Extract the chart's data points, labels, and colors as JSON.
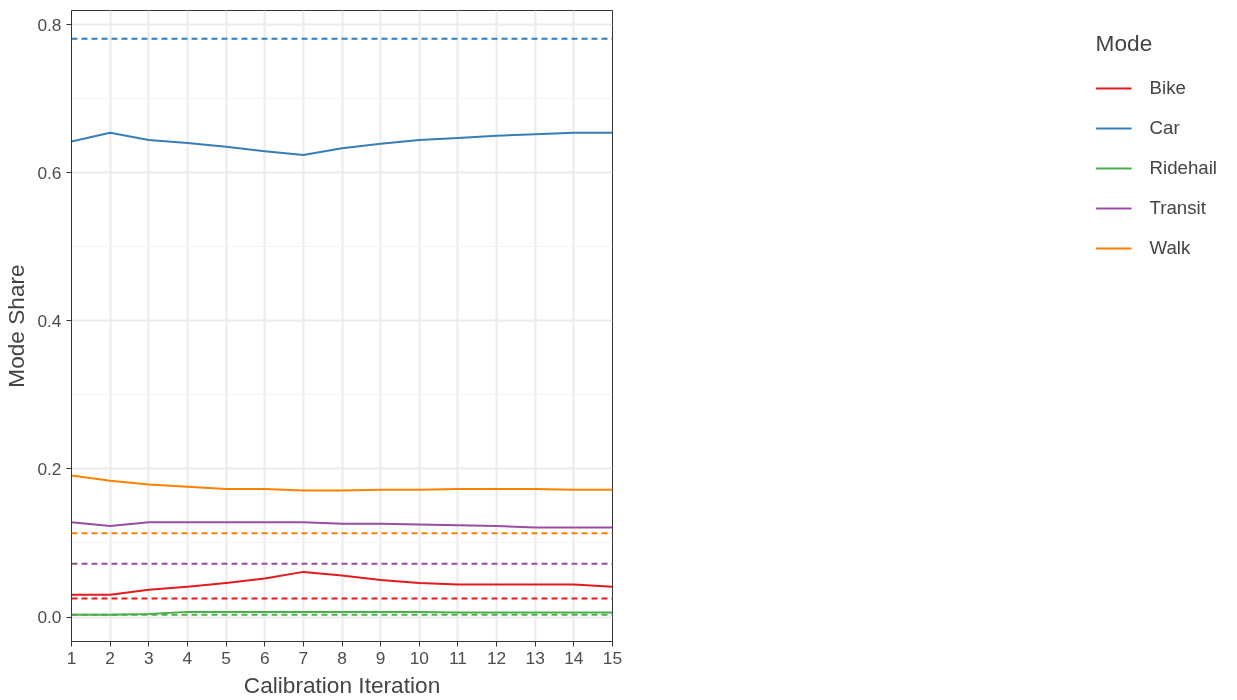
{
  "chart_data": {
    "type": "line",
    "xlabel": "Calibration Iteration",
    "ylabel": "Mode Share",
    "legend_title": "Mode",
    "x": [
      1,
      2,
      3,
      4,
      5,
      6,
      7,
      8,
      9,
      10,
      11,
      12,
      13,
      14,
      15
    ],
    "xlim": [
      1,
      15
    ],
    "xticks": [
      1,
      2,
      3,
      4,
      5,
      6,
      7,
      8,
      9,
      10,
      11,
      12,
      13,
      14,
      15
    ],
    "ylim": [
      -0.033,
      0.819
    ],
    "yticks": [
      {
        "value": 0,
        "label": "0.0"
      },
      {
        "value": 0.2,
        "label": "0.2"
      },
      {
        "value": 0.4,
        "label": "0.4"
      },
      {
        "value": 0.6,
        "label": "0.6"
      },
      {
        "value": 0.8,
        "label": "0.8"
      }
    ],
    "grid": true,
    "legend": "right",
    "line_style": "solid",
    "marker": "none",
    "series": [
      {
        "name": "Bike",
        "color": "#e41a1c",
        "values": [
          0.03,
          0.03,
          0.037,
          0.041,
          0.046,
          0.052,
          0.061,
          0.056,
          0.05,
          0.046,
          0.044,
          0.044,
          0.044,
          0.044,
          0.041
        ]
      },
      {
        "name": "Car",
        "color": "#377eb8",
        "values": [
          0.642,
          0.654,
          0.644,
          0.64,
          0.635,
          0.629,
          0.624,
          0.633,
          0.639,
          0.644,
          0.647,
          0.65,
          0.652,
          0.654,
          0.654
        ]
      },
      {
        "name": "Ridehail",
        "color": "#4daf4a",
        "values": [
          0.003,
          0.003,
          0.004,
          0.007,
          0.007,
          0.007,
          0.007,
          0.007,
          0.007,
          0.007,
          0.006,
          0.006,
          0.006,
          0.006,
          0.006
        ]
      },
      {
        "name": "Transit",
        "color": "#984ea3",
        "values": [
          0.128,
          0.123,
          0.128,
          0.128,
          0.128,
          0.128,
          0.128,
          0.126,
          0.126,
          0.125,
          0.124,
          0.123,
          0.121,
          0.121,
          0.121
        ]
      },
      {
        "name": "Walk",
        "color": "#ff7f00",
        "values": [
          0.191,
          0.184,
          0.179,
          0.176,
          0.173,
          0.173,
          0.171,
          0.171,
          0.172,
          0.172,
          0.173,
          0.173,
          0.173,
          0.172,
          0.172
        ]
      }
    ],
    "ref_lines": [
      {
        "axis": "y",
        "value": 0.781,
        "color": "#377eb8",
        "line_style": "dashed"
      },
      {
        "axis": "y",
        "value": 0.113,
        "color": "#ff7f00",
        "line_style": "dashed"
      },
      {
        "axis": "y",
        "value": 0.072,
        "color": "#984ea3",
        "line_style": "dashed"
      },
      {
        "axis": "y",
        "value": 0.025,
        "color": "#e41a1c",
        "line_style": "dashed"
      },
      {
        "axis": "y",
        "value": 0.003,
        "color": "#4daf4a",
        "line_style": "dashed"
      }
    ]
  }
}
